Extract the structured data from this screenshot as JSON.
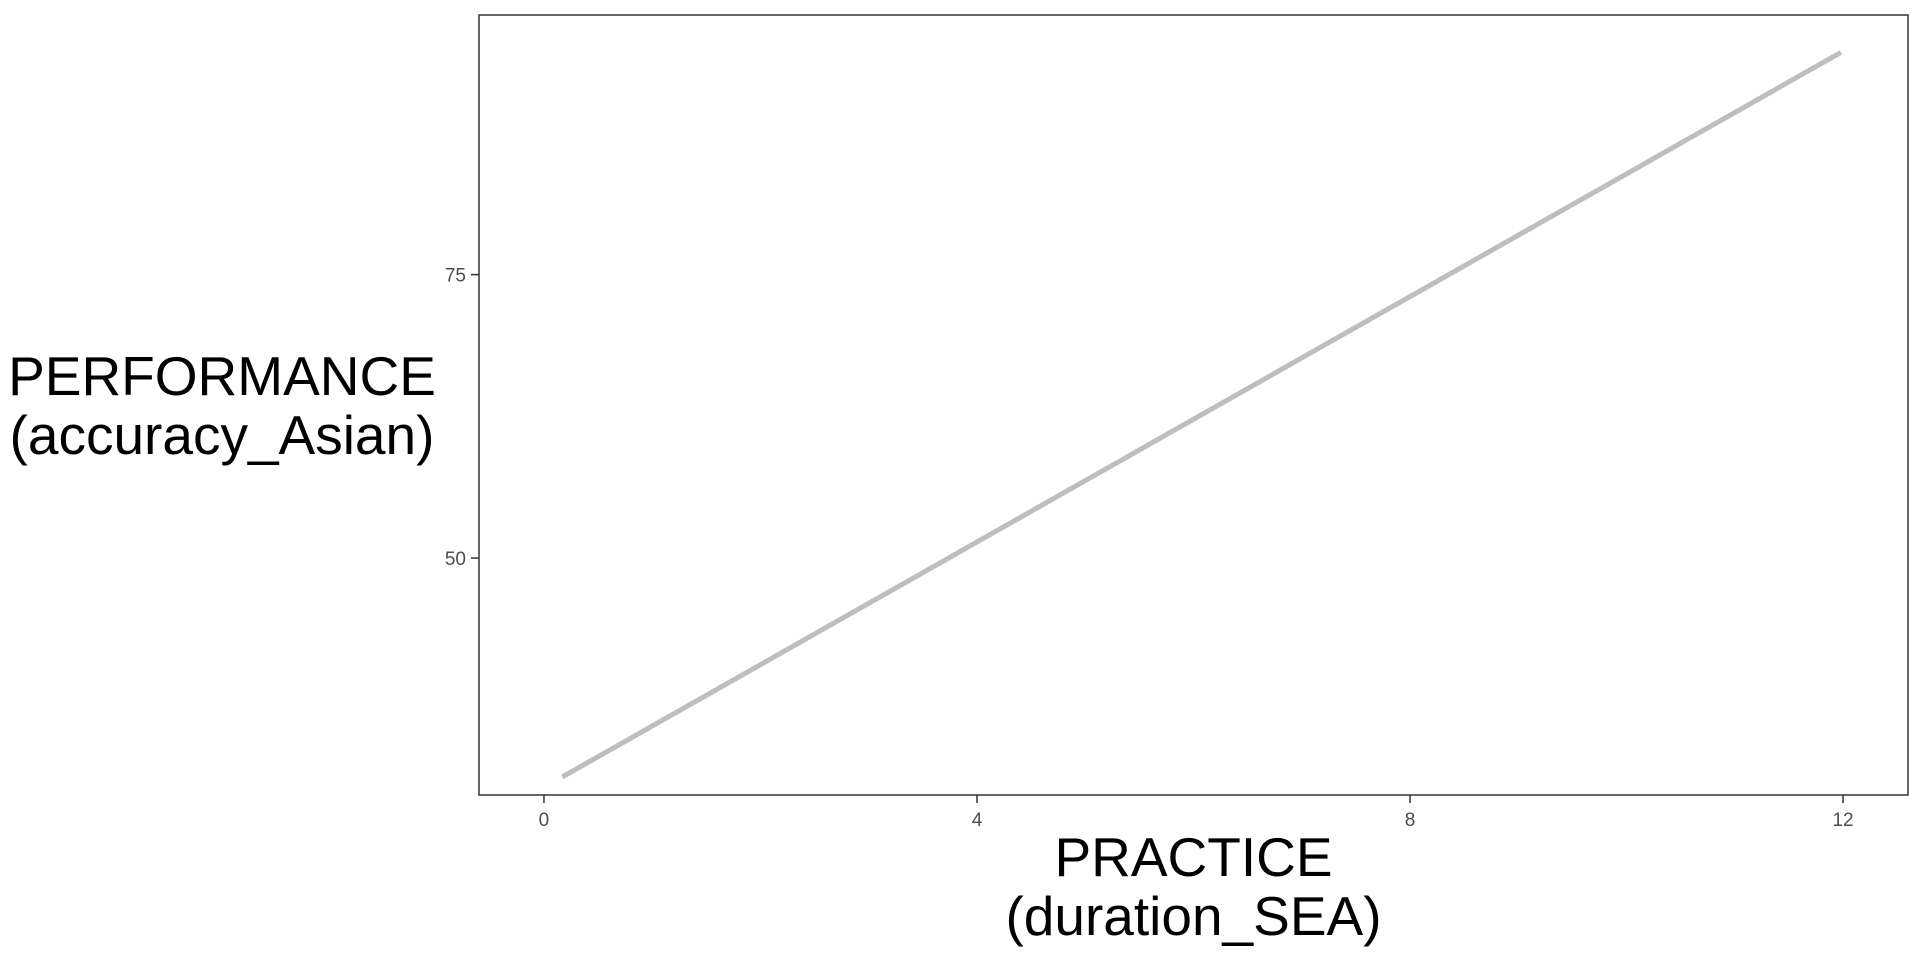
{
  "chart_data": {
    "type": "line",
    "xlabel_line1": "PRACTICE",
    "xlabel_line2": "(duration_SEA)",
    "ylabel_line1": "PERFORMANCE",
    "ylabel_line2": "(accuracy_Asian)",
    "xlim": [
      -0.6,
      12.6
    ],
    "ylim": [
      29.1,
      97.9
    ],
    "x_ticks": [
      0,
      4,
      8,
      12
    ],
    "y_ticks": [
      50,
      75
    ],
    "grid": false,
    "series": [
      {
        "color": "#bebebe",
        "x": [
          0.17,
          11.98
        ],
        "y": [
          30.7,
          94.6
        ]
      }
    ]
  }
}
